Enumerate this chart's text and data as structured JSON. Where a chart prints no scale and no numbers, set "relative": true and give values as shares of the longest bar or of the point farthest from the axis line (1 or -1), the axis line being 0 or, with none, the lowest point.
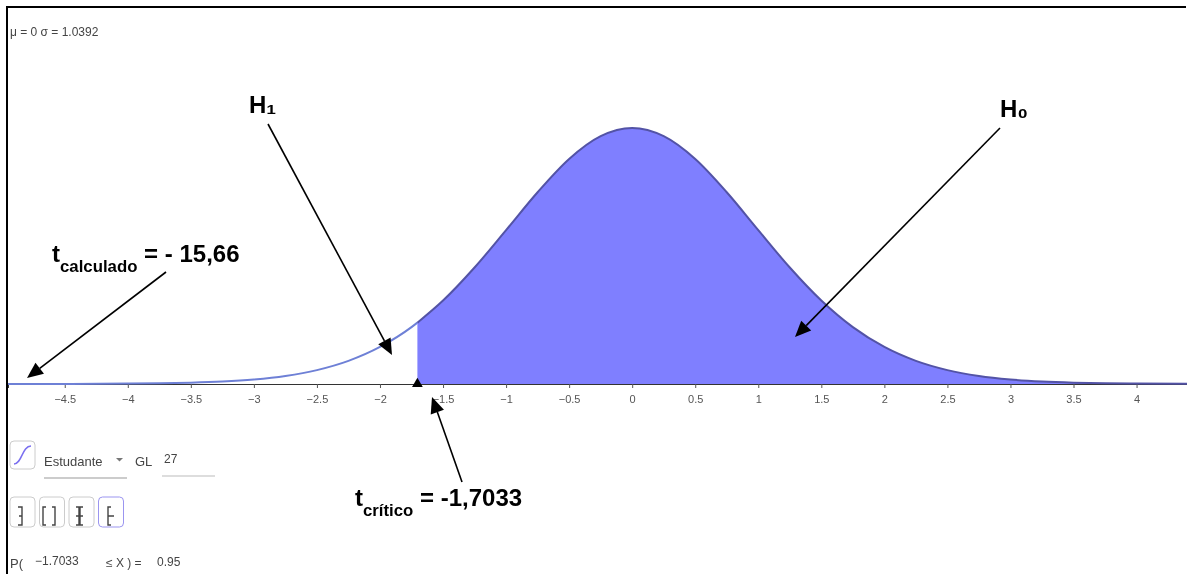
{
  "chart_data": {
    "type": "area",
    "relative": true,
    "xlim": [
      -4.95,
      4.4
    ],
    "xticks": [
      {
        "value": -4.5,
        "label": "−4.5"
      },
      {
        "value": -4,
        "label": "−4"
      },
      {
        "value": -3.5,
        "label": "−3.5"
      },
      {
        "value": -3,
        "label": "−3"
      },
      {
        "value": -2.5,
        "label": "−2.5"
      },
      {
        "value": -2,
        "label": "−2"
      },
      {
        "value": -1.5,
        "label": "−1.5"
      },
      {
        "value": -1,
        "label": "−1"
      },
      {
        "value": -0.5,
        "label": "−0.5"
      },
      0,
      0.5,
      1,
      1.5,
      2,
      2.5,
      3,
      3.5,
      4
    ],
    "series": [
      {
        "type": "line",
        "color": "#6e80d6",
        "x": [
          -4.95,
          -4.5,
          -4,
          -3.75,
          -3.5,
          -3.25,
          -3,
          -2.75,
          -2.5,
          -2.25,
          -2,
          -1.75,
          -1.7033
        ],
        "values": [
          0.0001,
          0.0004,
          0.0015,
          0.0028,
          0.0053,
          0.0098,
          0.0178,
          0.0315,
          0.0542,
          0.0902,
          0.1446,
          0.222,
          0.2396
        ]
      },
      {
        "color": "#7f7fff",
        "x": [
          -1.7033,
          -1.5,
          -1.25,
          -1,
          -0.75,
          -0.5,
          -0.25,
          0,
          0.25,
          0.5,
          0.75,
          1,
          1.25,
          1.5,
          1.75,
          2,
          2.25,
          2.5,
          2.75,
          3,
          3.25,
          3.5,
          3.75,
          4,
          4.4
        ],
        "values": [
          0.2396,
          0.326,
          0.455,
          0.601,
          0.749,
          0.879,
          0.968,
          1,
          0.968,
          0.879,
          0.749,
          0.601,
          0.455,
          0.326,
          0.222,
          0.1446,
          0.0902,
          0.0542,
          0.0315,
          0.0178,
          0.0098,
          0.0053,
          0.0028,
          0.0015,
          0.0005
        ]
      },
      {
        "type": "scatter",
        "marker": "triangle",
        "color": "#000000",
        "x": [
          -1.7033
        ],
        "values": [
          0
        ]
      }
    ],
    "annotations": [
      "μ = 0 σ = 1.0392",
      "H₁",
      "H₀",
      "t$_{calculado}$ = - 15,66",
      "t$_{crítico}$ = -1,7033",
      "Estudante",
      "GL",
      "27",
      "P(",
      "−1.7033",
      "≤ X ) =",
      "0.95"
    ]
  }
}
